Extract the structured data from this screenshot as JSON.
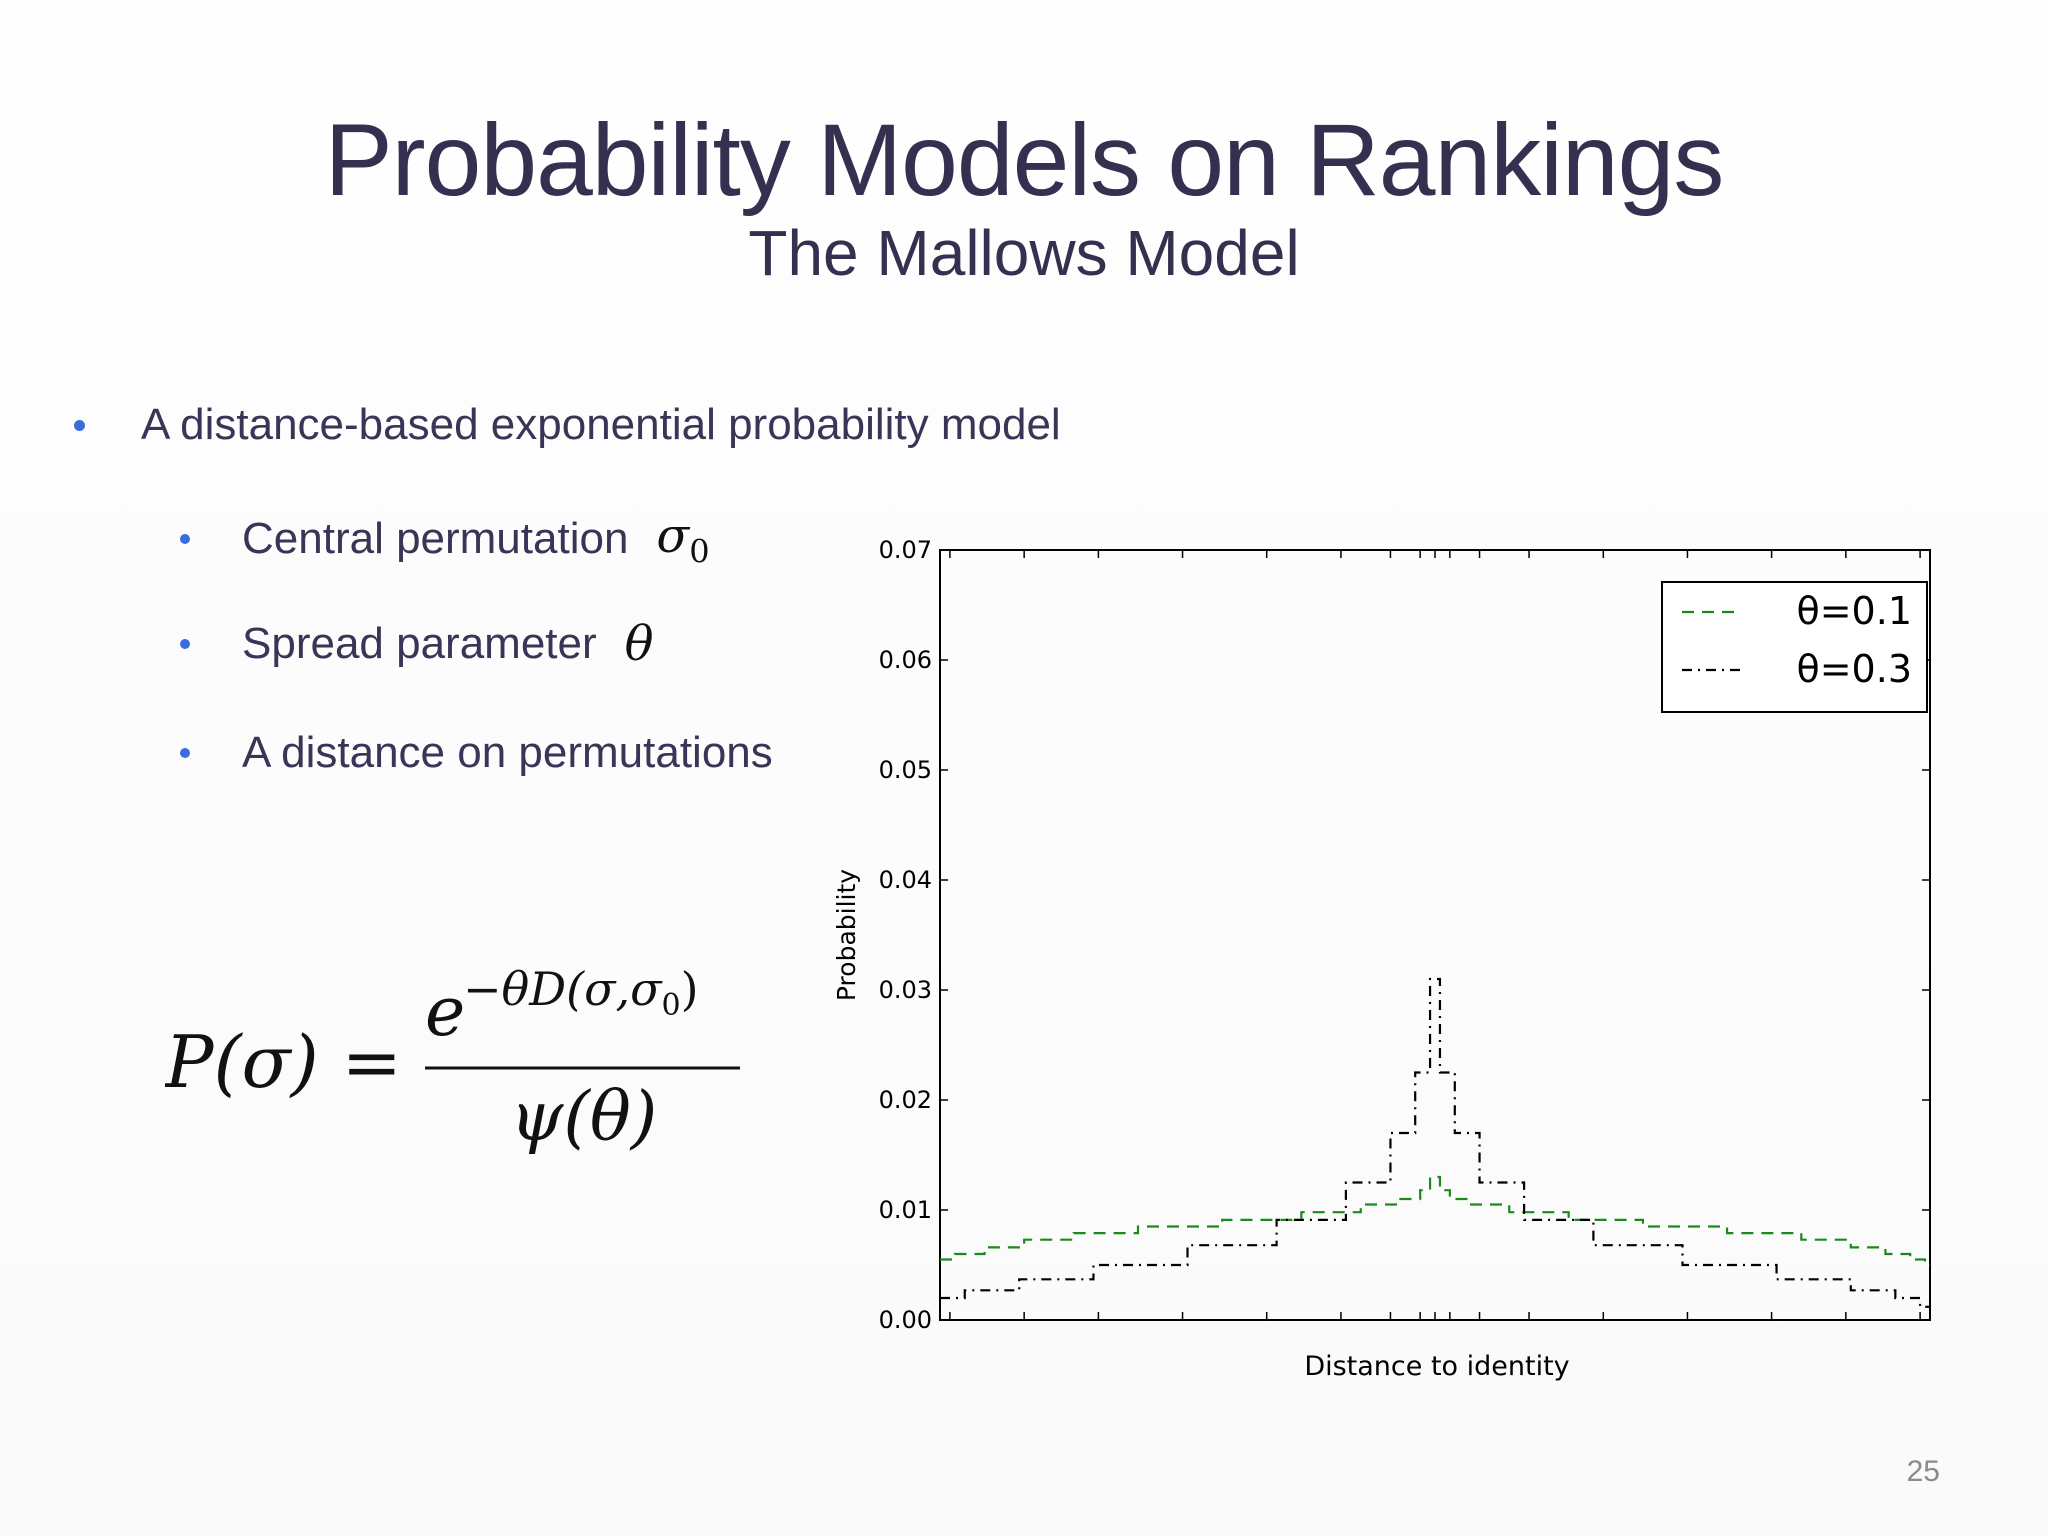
{
  "slide": {
    "title": "Probability Models on Rankings",
    "subtitle": "The Mallows Model",
    "page_number": "25"
  },
  "bullets": {
    "main": "A distance-based exponential probability model",
    "sub": [
      {
        "text": "Central permutation",
        "symbol": "σ",
        "symbol_sub": "0"
      },
      {
        "text": "Spread parameter",
        "symbol": "θ",
        "symbol_sub": ""
      },
      {
        "text": "A distance on permutations",
        "symbol": "",
        "symbol_sub": ""
      }
    ]
  },
  "formula": {
    "lhs": "P(σ) =",
    "numerator_base": "e",
    "numerator_exponent": "−θD(σ,σ",
    "numerator_exponent_sub": "0",
    "numerator_exponent_close": ")",
    "denominator": "ψ(θ)"
  },
  "colors": {
    "title": "#35304f",
    "bullet_dot": "#3a6be0",
    "series_green": "#1a8a1a",
    "series_black": "#000000"
  },
  "chart_data": {
    "type": "line",
    "title": "",
    "xlabel": "Distance to identity",
    "ylabel": "Probability",
    "ylim": [
      0.0,
      0.07
    ],
    "yticks": [
      "0.00",
      "0.01",
      "0.02",
      "0.03",
      "0.04",
      "0.05",
      "0.06",
      "0.07"
    ],
    "xlim": [
      0,
      1
    ],
    "x_tick_labels_shown": false,
    "legend_position": "top-right",
    "series": [
      {
        "name": "θ=0.1",
        "style": "dashed",
        "color": "#1a8a1a",
        "x": [
          0.0,
          0.03,
          0.06,
          0.11,
          0.16,
          0.24,
          0.33,
          0.4,
          0.45,
          0.48,
          0.49,
          0.5,
          0.51,
          0.52,
          0.55,
          0.6,
          0.67,
          0.75,
          0.84,
          0.9,
          0.94,
          0.97,
          0.99,
          1.0
        ],
        "y": [
          0.0055,
          0.006,
          0.0066,
          0.0073,
          0.0079,
          0.0085,
          0.0091,
          0.0098,
          0.0105,
          0.011,
          0.0118,
          0.013,
          0.0118,
          0.011,
          0.0105,
          0.0098,
          0.0091,
          0.0085,
          0.0079,
          0.0073,
          0.0066,
          0.006,
          0.0055,
          0.005
        ]
      },
      {
        "name": "θ=0.3",
        "style": "dash-dot",
        "color": "#000000",
        "x": [
          0.0,
          0.05,
          0.11,
          0.2,
          0.3,
          0.38,
          0.44,
          0.47,
          0.49,
          0.5,
          0.51,
          0.53,
          0.56,
          0.62,
          0.7,
          0.8,
          0.89,
          0.95,
          0.98,
          1.0
        ],
        "y": [
          0.002,
          0.0027,
          0.0037,
          0.005,
          0.0068,
          0.0091,
          0.0125,
          0.017,
          0.0225,
          0.031,
          0.0225,
          0.017,
          0.0125,
          0.0091,
          0.0068,
          0.005,
          0.0037,
          0.0027,
          0.002,
          0.0012
        ]
      }
    ]
  }
}
